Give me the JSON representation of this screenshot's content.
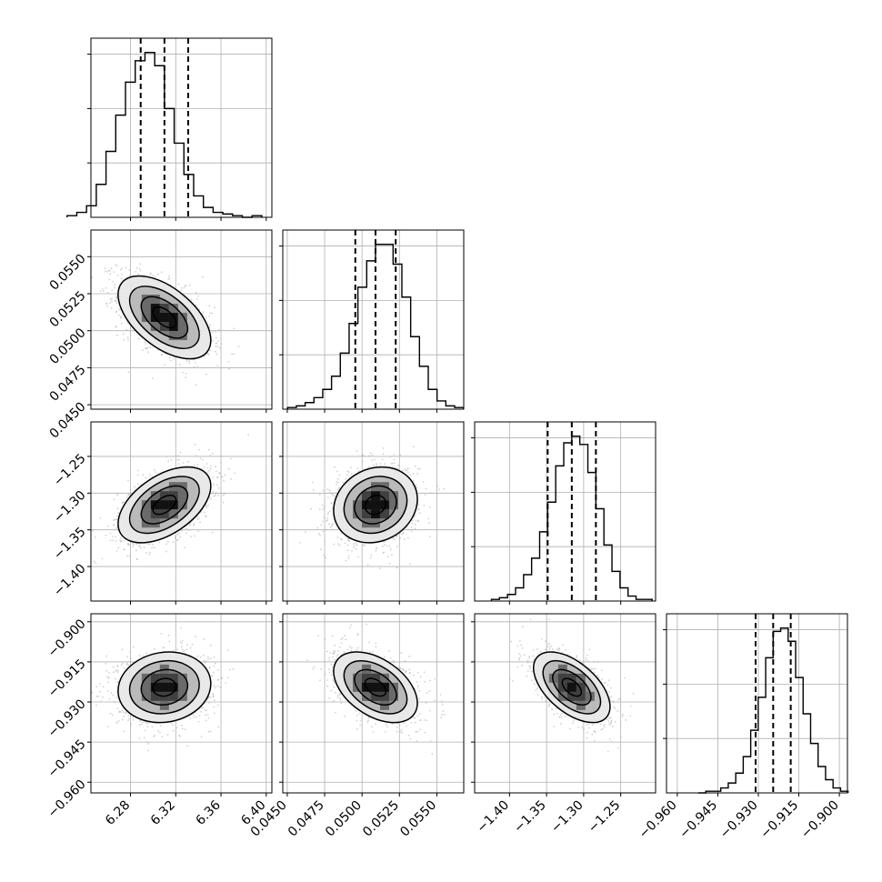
{
  "chart_data": {
    "type": "corner",
    "grid": true,
    "parameters": [
      {
        "range": [
          6.245,
          6.405
        ],
        "ticks": [
          {
            "value": 6.28,
            "label": "6.28"
          },
          {
            "value": 6.32,
            "label": "6.32"
          },
          {
            "value": 6.36,
            "label": "6.36"
          },
          {
            "value": 6.4,
            "label": "6.40"
          }
        ],
        "mean": 6.31,
        "std": 0.0205,
        "quantiles": [
          6.289,
          6.31,
          6.331
        ],
        "histogram": [
          0.01,
          0.03,
          0.07,
          0.2,
          0.4,
          0.62,
          0.82,
          0.95,
          1.0,
          0.92,
          0.66,
          0.45,
          0.26,
          0.13,
          0.06,
          0.03,
          0.02,
          0.01,
          0.0,
          0.01
        ]
      },
      {
        "range": [
          0.0447,
          0.0568
        ],
        "ticks": [
          {
            "value": 0.045,
            "label": "0.0450"
          },
          {
            "value": 0.0475,
            "label": "0.0475"
          },
          {
            "value": 0.05,
            "label": "0.0500"
          },
          {
            "value": 0.0525,
            "label": "0.0525"
          },
          {
            "value": 0.055,
            "label": "0.0550"
          }
        ],
        "mean": 0.0509,
        "std": 0.0014,
        "quantiles": [
          0.04955,
          0.0509,
          0.05225
        ],
        "histogram": [
          0.01,
          0.02,
          0.04,
          0.07,
          0.12,
          0.2,
          0.34,
          0.52,
          0.74,
          0.9,
          1.0,
          1.0,
          0.88,
          0.68,
          0.44,
          0.26,
          0.12,
          0.05,
          0.02,
          0.01
        ]
      },
      {
        "range": [
          -1.447,
          -1.203
        ],
        "ticks": [
          {
            "value": -1.4,
            "label": "−1.40"
          },
          {
            "value": -1.35,
            "label": "−1.35"
          },
          {
            "value": -1.3,
            "label": "−1.30"
          },
          {
            "value": -1.25,
            "label": "−1.25"
          }
        ],
        "mean": -1.316,
        "std": 0.0258,
        "quantiles": [
          -1.3485,
          -1.316,
          -1.2835
        ],
        "histogram": [
          0.01,
          0.02,
          0.04,
          0.08,
          0.16,
          0.26,
          0.42,
          0.6,
          0.82,
          0.96,
          1.0,
          0.95,
          0.78,
          0.56,
          0.34,
          0.18,
          0.08,
          0.03,
          0.01,
          0.01
        ]
      },
      {
        "range": [
          -0.964,
          -0.897
        ],
        "ticks": [
          {
            "value": -0.96,
            "label": "−0.960"
          },
          {
            "value": -0.945,
            "label": "−0.945"
          },
          {
            "value": -0.93,
            "label": "−0.930"
          },
          {
            "value": -0.915,
            "label": "−0.915"
          },
          {
            "value": -0.9,
            "label": "−0.900"
          }
        ],
        "mean": -0.9245,
        "std": 0.0066,
        "quantiles": [
          -0.931,
          -0.9245,
          -0.918
        ],
        "histogram": [
          0.0,
          0.01,
          0.01,
          0.03,
          0.06,
          0.12,
          0.22,
          0.38,
          0.58,
          0.82,
          0.98,
          1.0,
          0.92,
          0.7,
          0.48,
          0.3,
          0.16,
          0.08,
          0.03,
          0.01
        ]
      }
    ],
    "correlations": [
      {
        "row": 1,
        "col": 0,
        "rho": -0.55
      },
      {
        "row": 2,
        "col": 0,
        "rho": 0.5
      },
      {
        "row": 2,
        "col": 1,
        "rho": 0.15
      },
      {
        "row": 3,
        "col": 0,
        "rho": 0.1
      },
      {
        "row": 3,
        "col": 1,
        "rho": -0.45
      },
      {
        "row": 3,
        "col": 2,
        "rho": -0.55
      }
    ],
    "contour_levels_sigma": [
      0.5,
      1.0,
      1.5,
      2.0
    ]
  }
}
